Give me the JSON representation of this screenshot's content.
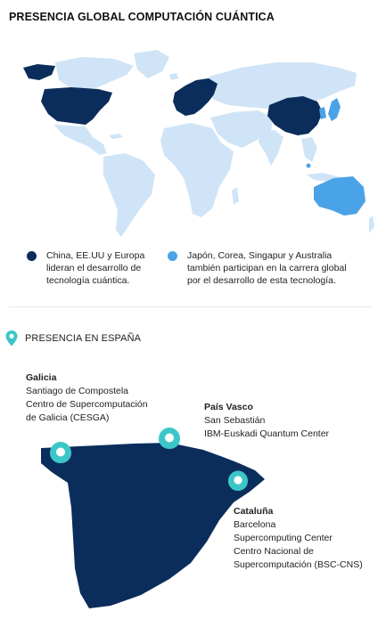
{
  "title": "PRESENCIA GLOBAL COMPUTACIÓN CUÁNTICA",
  "colors": {
    "leader": "#0b2d5b",
    "participant": "#4aa3e6",
    "land": "#cfe4f6",
    "pin": "#3cc6c8"
  },
  "legend": {
    "leaders": {
      "line1": "China, EE.UU y Europa",
      "line2": "lideran el desarrollo de",
      "line3": "tecnología cuántica."
    },
    "participants": {
      "line1": "Japón, Corea, Singapur y Australia",
      "line2": "también participan en la carrera global",
      "line3": "por el desarrollo de esta tecnología."
    }
  },
  "spain_section": {
    "header": "PRESENCIA EN ESPAÑA",
    "pin_icon": "map-pin-icon"
  },
  "locations": {
    "galicia": {
      "name": "Galicia",
      "line1": "Santiago de Compostela",
      "line2": "Centro de Supercomputación",
      "line3": "de Galicia (CESGA)"
    },
    "pais_vasco": {
      "name": "País Vasco",
      "line1": "San Sebastián",
      "line2": "IBM-Euskadi Quantum Center"
    },
    "cataluna": {
      "name": "Cataluña",
      "line1": "Barcelona",
      "line2": "Supercomputing Center",
      "line3": "Centro Nacional de",
      "line4": "Supercomputación (BSC-CNS)"
    }
  }
}
